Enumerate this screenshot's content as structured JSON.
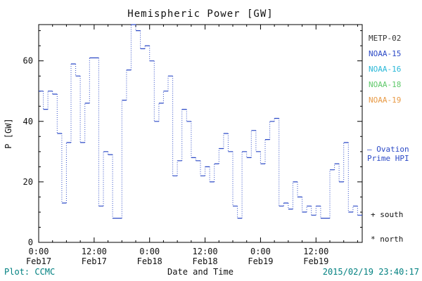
{
  "title_bar": {
    "title": "Hemispheric Power [GW]"
  },
  "colors": {
    "trace": "#2b49c6",
    "teal": "#008080",
    "axis": "#000000"
  },
  "legend": [
    {
      "label": "METP-02",
      "color": "#333333"
    },
    {
      "label": "NOAA-15",
      "color": "#2b49c6"
    },
    {
      "label": "NOAA-16",
      "color": "#29b8d8"
    },
    {
      "label": "NOAA-18",
      "color": "#5fc96a"
    },
    {
      "label": "NOAA-19",
      "color": "#e89a45"
    }
  ],
  "annotations": {
    "ovation_line1": "— Ovation",
    "ovation_line2": "Prime HPI",
    "ovation_color": "#2b49c6",
    "south": "+ south",
    "north": "* north"
  },
  "footer": {
    "plot_credit": "Plot: CCMC",
    "xlabel": "Date and Time",
    "timestamp": "2015/02/19 23:40:17"
  },
  "chart_data": {
    "type": "line",
    "style": "stepped, dotted vertical connectors",
    "title": "Hemispheric Power [GW]",
    "xlabel": "Date and Time",
    "ylabel": "P [GW]",
    "ylim": [
      0,
      72
    ],
    "xlim_hours": [
      0,
      70
    ],
    "yticks": [
      0,
      20,
      40,
      60
    ],
    "xticks": [
      {
        "hour": 0,
        "time": "0:00",
        "date": "Feb17"
      },
      {
        "hour": 12,
        "time": "12:00",
        "date": "Feb17"
      },
      {
        "hour": 24,
        "time": "0:00",
        "date": "Feb18"
      },
      {
        "hour": 36,
        "time": "12:00",
        "date": "Feb18"
      },
      {
        "hour": 48,
        "time": "0:00",
        "date": "Feb19"
      },
      {
        "hour": 60,
        "time": "12:00",
        "date": "Feb19"
      }
    ],
    "grid": false,
    "legend_position": "right",
    "series": [
      {
        "name": "Ovation Prime HPI",
        "color": "#2b49c6",
        "x_hours_start": 0,
        "x_hours_step": 1,
        "values": [
          50,
          44,
          50,
          49,
          36,
          13,
          33,
          59,
          55,
          33,
          46,
          61,
          61,
          12,
          30,
          29,
          8,
          8,
          47,
          57,
          72,
          70,
          64,
          65,
          60,
          40,
          46,
          50,
          55,
          22,
          27,
          44,
          40,
          28,
          27,
          22,
          25,
          20,
          26,
          31,
          36,
          30,
          12,
          8,
          30,
          28,
          37,
          30,
          26,
          34,
          40,
          41,
          12,
          13,
          11,
          20,
          15,
          10,
          12,
          9,
          12,
          8,
          8,
          24,
          26,
          20,
          33,
          10,
          12,
          9
        ]
      }
    ]
  }
}
